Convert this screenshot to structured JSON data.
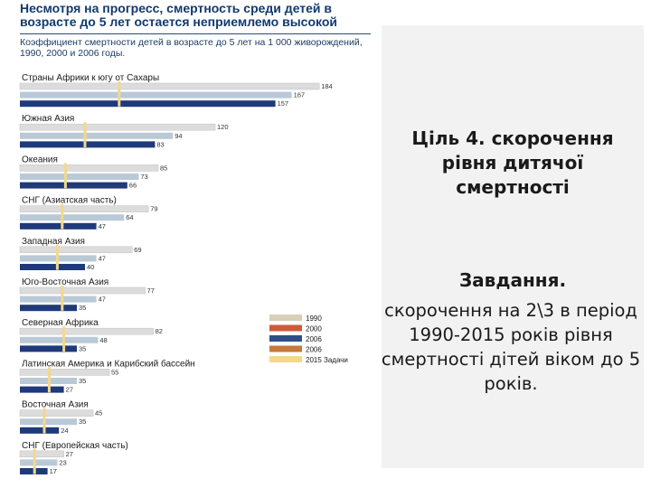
{
  "chart_data": {
    "type": "bar",
    "title": "Несмотря на прогресс, смертность среди детей в возрасте до 5 лет остается неприемлемо высокой",
    "subtitle": "Коэффициент смертности детей в возрасте до 5 лет на 1 000 живорождений, 1990, 2000 и 2006 годы.",
    "categories": [
      "Страны Африки к югу от Сахары",
      "Южная Азия",
      "Океания",
      "СНГ (Азиатская часть)",
      "Западная Азия",
      "Юго-Восточная Азия",
      "Северная Африка",
      "Латинская Америка и Карибский бассейн",
      "Восточная Азия",
      "СНГ (Европейская часть)"
    ],
    "series": [
      {
        "name": "1990",
        "color": "#dcdcdc",
        "values": [
          184,
          120,
          85,
          79,
          69,
          77,
          82,
          55,
          45,
          27
        ]
      },
      {
        "name": "2000",
        "color": "#b9c9d6",
        "values": [
          167,
          94,
          73,
          64,
          47,
          47,
          48,
          35,
          35,
          23
        ]
      },
      {
        "name": "2006",
        "color": "#1f3a7a",
        "values": [
          157,
          83,
          66,
          47,
          40,
          35,
          35,
          27,
          24,
          17
        ]
      }
    ],
    "targets": {
      "name": "2015 Задачи",
      "color": "#f2d88a",
      "values": [
        61,
        40,
        28,
        26,
        23,
        26,
        27,
        18,
        15,
        9
      ]
    },
    "legend": [
      {
        "label": "1990",
        "color": "#d9cfb8"
      },
      {
        "label": "2000",
        "color": "#cc5b3c"
      },
      {
        "label": "2006",
        "color": "#2c4f86"
      },
      {
        "label": "2006",
        "color": "#c57a3a"
      },
      {
        "label": "2015 Задачи",
        "color": "#f2d88a"
      }
    ],
    "xlim": [
      0,
      190
    ],
    "legend_position": "bottom-right"
  },
  "slide": {
    "goal": "Ціль 4. скорочення рівня дитячої смертності",
    "task_title": "Завдання.",
    "task_text": "скорочення на 2\\3 в період 1990-2015 років рівня смертності дітей віком до 5 років."
  }
}
